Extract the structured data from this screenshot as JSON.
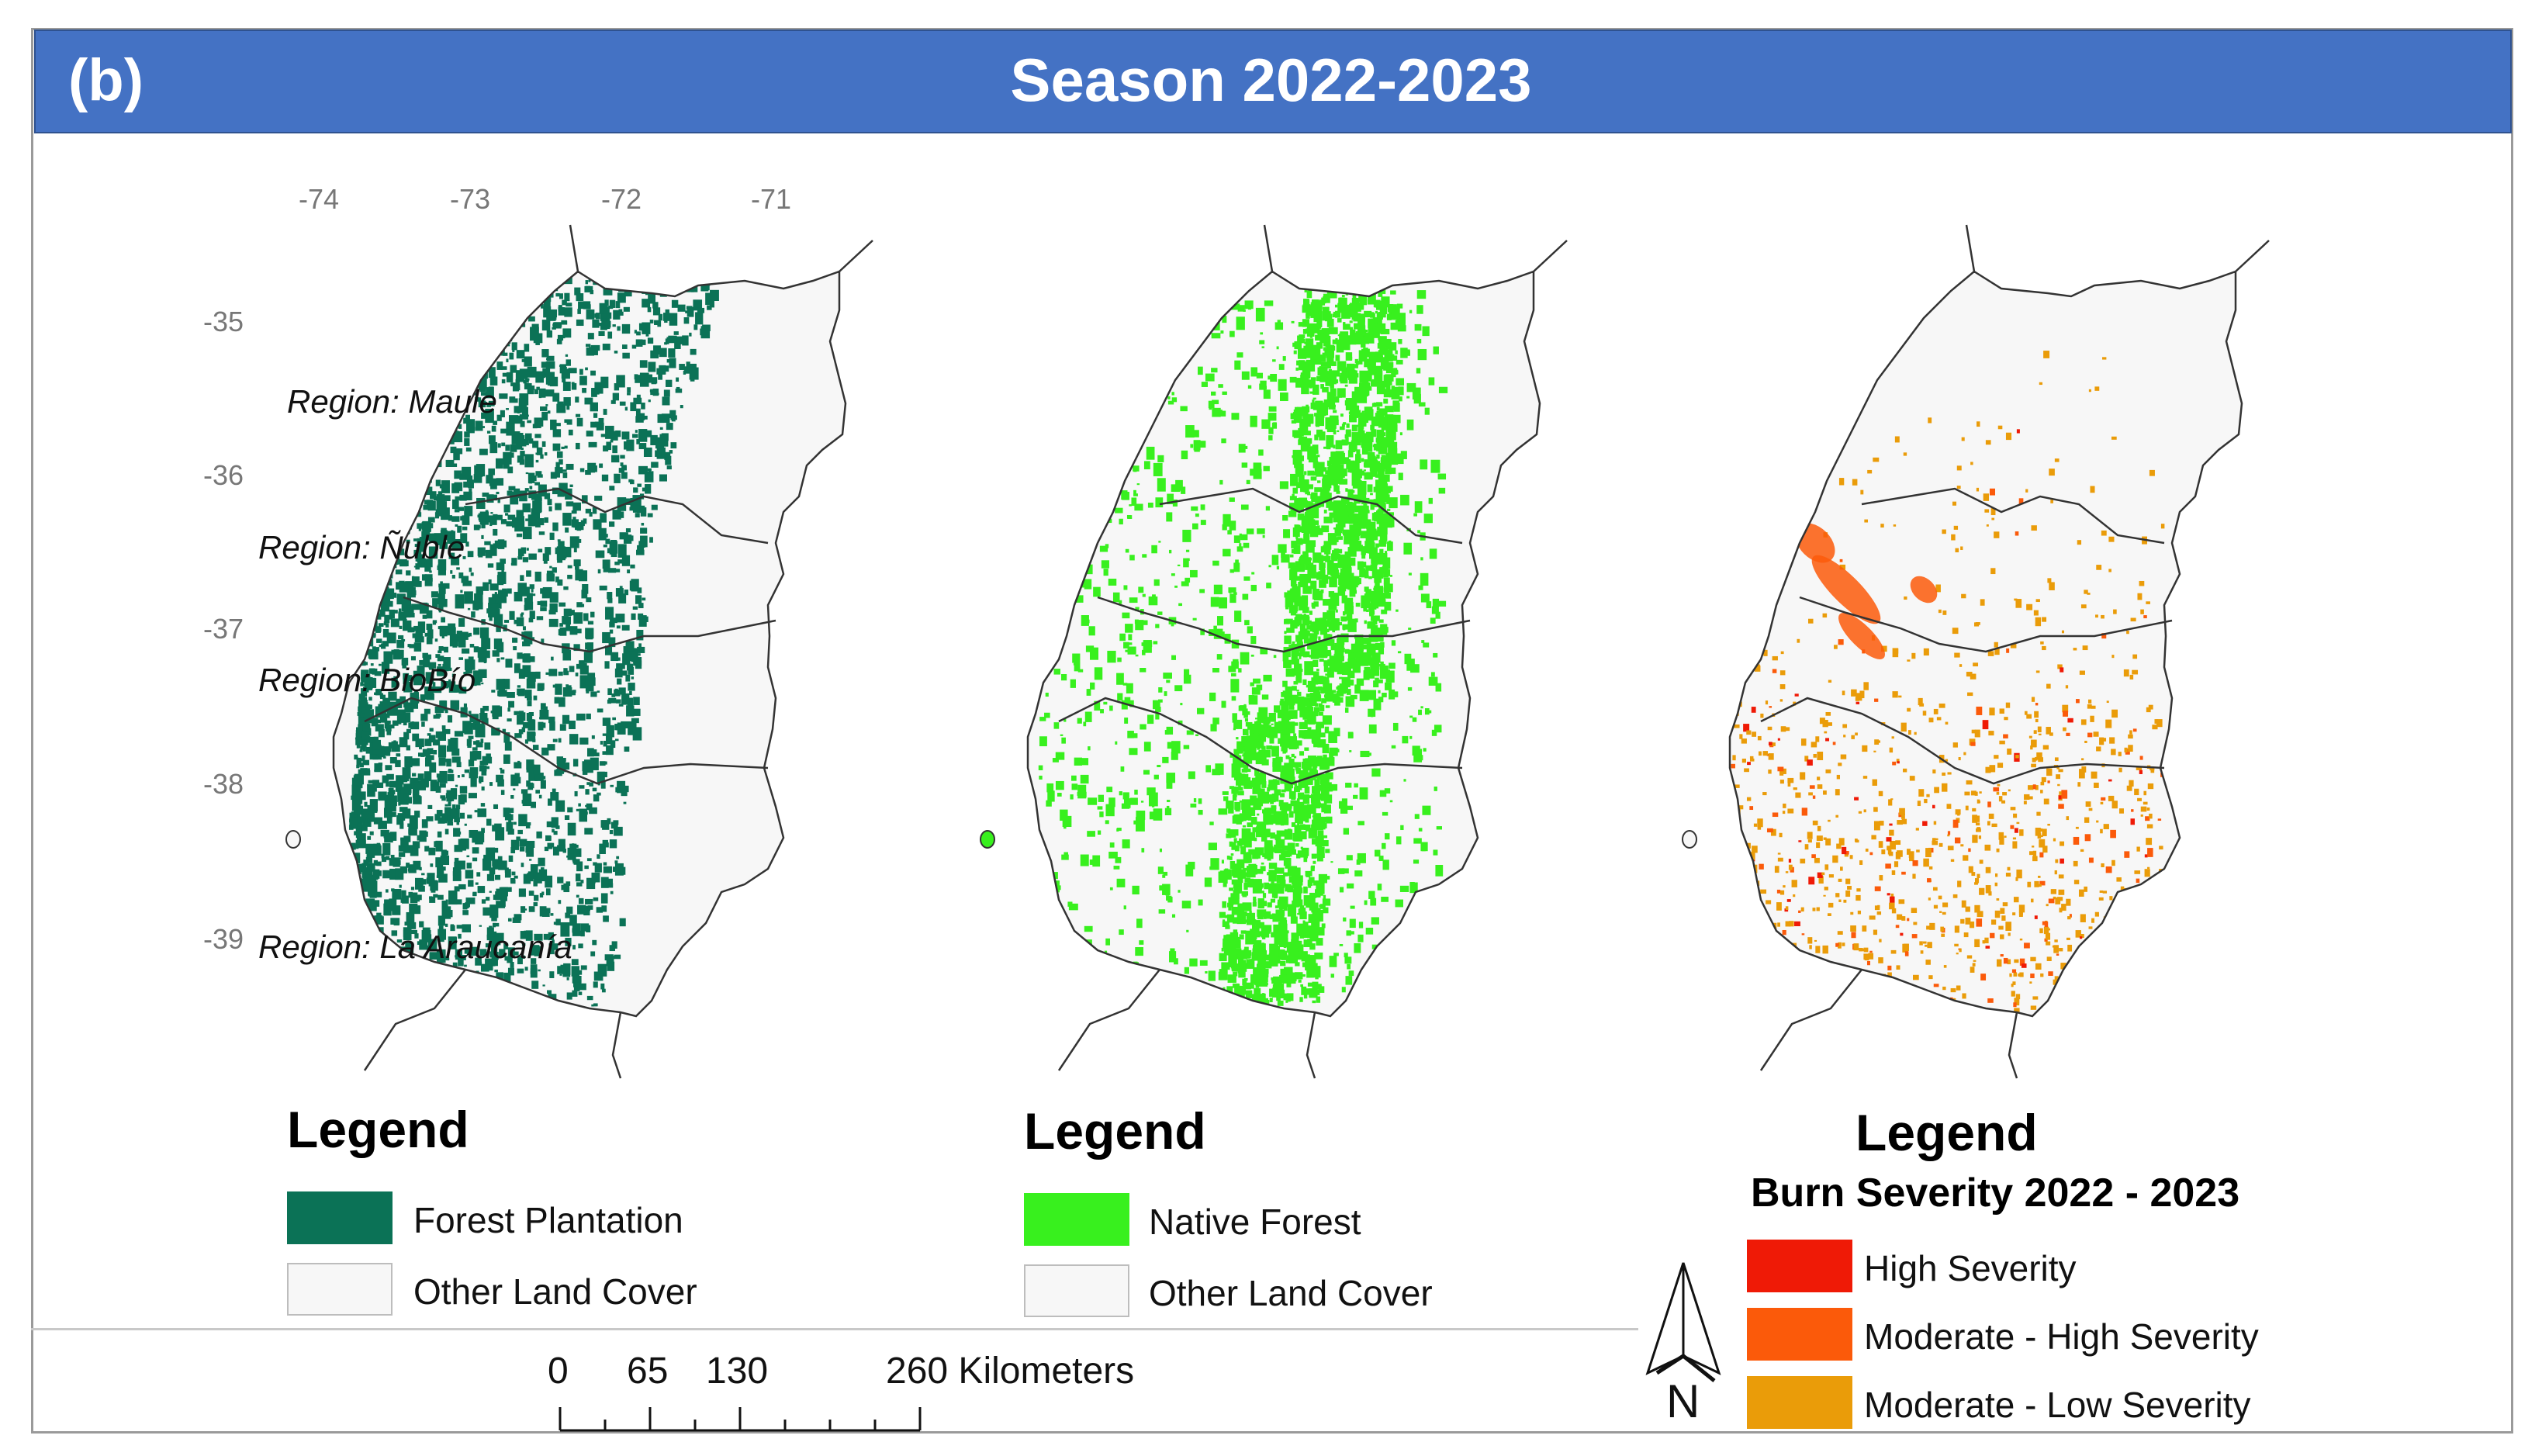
{
  "header": {
    "panel_label": "(b)",
    "title": "Season 2022-2023",
    "color": "#4472c4"
  },
  "axes": {
    "longitude_ticks": [
      "-74",
      "-73",
      "-72",
      "-71"
    ],
    "latitude_ticks": [
      "-35",
      "-36",
      "-37",
      "-38",
      "-39"
    ]
  },
  "regions": [
    "Region: Maule",
    "Region: Ñuble",
    "Region: BioBío",
    "Region: La Araucanía"
  ],
  "maps": [
    {
      "layer": "Forest Plantation",
      "legend": {
        "title": "Legend",
        "items": [
          {
            "label": "Forest Plantation",
            "color": "#0b7256"
          },
          {
            "label": "Other Land Cover",
            "color": "#f7f7f7"
          }
        ]
      }
    },
    {
      "layer": "Native Forest",
      "legend": {
        "title": "Legend",
        "items": [
          {
            "label": "Native Forest",
            "color": "#38f01e"
          },
          {
            "label": "Other Land Cover",
            "color": "#f7f7f7"
          }
        ]
      }
    },
    {
      "layer": "Burn Severity",
      "legend": {
        "title": "Legend",
        "subtitle": "Burn Severity 2022 - 2023",
        "items": [
          {
            "label": "High Severity",
            "color": "#ef1a06"
          },
          {
            "label": "Moderate - High Severity",
            "color": "#fb5a0a"
          },
          {
            "label": "Moderate - Low Severity",
            "color": "#ea9c09"
          }
        ]
      }
    }
  ],
  "scale_bar": {
    "labels": [
      "0",
      "65",
      "130",
      "260 Kilometers"
    ]
  },
  "north_arrow": {
    "label": "N",
    "icon": "north-arrow-icon"
  },
  "colors": {
    "outline": "#333333",
    "land_background": "#f7f7f7"
  }
}
